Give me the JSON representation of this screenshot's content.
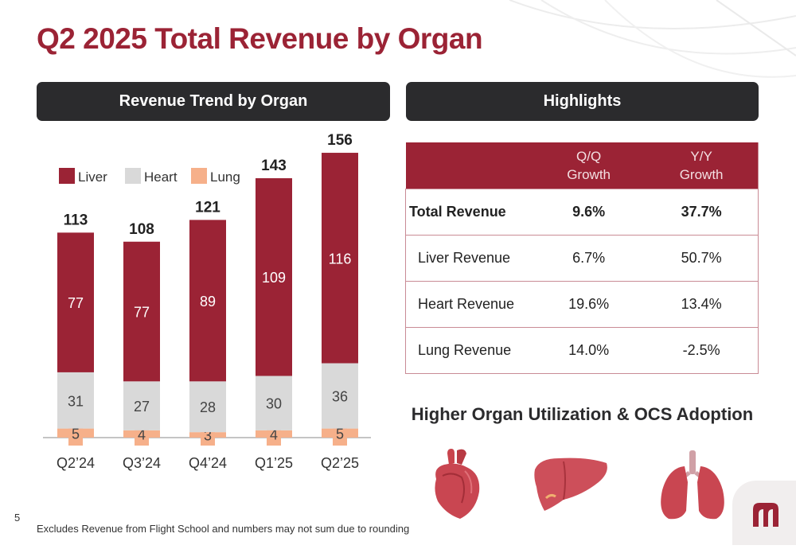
{
  "page": {
    "title": "Q2 2025 Total Revenue by Organ",
    "page_number": "5",
    "footnote": "Excludes Revenue from Flight School and numbers may not sum due to rounding"
  },
  "left_panel": {
    "header": "Revenue Trend by Organ"
  },
  "right_panel": {
    "header": "Highlights"
  },
  "highlights_table": {
    "columns": [
      "",
      "Q/Q Growth",
      "Y/Y Growth"
    ],
    "rows": [
      {
        "label": "Total Revenue",
        "qq": "9.6%",
        "yy": "37.7%",
        "bold": true
      },
      {
        "label": "Liver Revenue",
        "qq": "6.7%",
        "yy": "50.7%"
      },
      {
        "label": "Heart Revenue",
        "qq": "19.6%",
        "yy": "13.4%"
      },
      {
        "label": "Lung Revenue",
        "qq": "14.0%",
        "yy": "-2.5%"
      }
    ]
  },
  "subheading": "Higher Organ Utilization & OCS Adoption",
  "organ_icons": [
    "heart-icon",
    "liver-icon",
    "lungs-icon"
  ],
  "colors": {
    "liver": "#9b2335",
    "heart": "#d9d9d9",
    "lung": "#f6b08a",
    "header_bg": "#2b2b2d",
    "title": "#9b2335"
  },
  "chart_data": {
    "type": "bar",
    "stacked": true,
    "categories": [
      "Q2’24",
      "Q3’24",
      "Q4’24",
      "Q1’25",
      "Q2’25"
    ],
    "series": [
      {
        "name": "Lung",
        "values": [
          5,
          4,
          3,
          4,
          5
        ]
      },
      {
        "name": "Heart",
        "values": [
          31,
          27,
          28,
          30,
          36
        ]
      },
      {
        "name": "Liver",
        "values": [
          77,
          77,
          89,
          109,
          116
        ]
      }
    ],
    "totals": [
      113,
      108,
      121,
      143,
      156
    ],
    "legend": [
      "Liver",
      "Heart",
      "Lung"
    ],
    "legend_position": "top-left",
    "grid": false,
    "ylim": [
      0,
      160
    ]
  }
}
